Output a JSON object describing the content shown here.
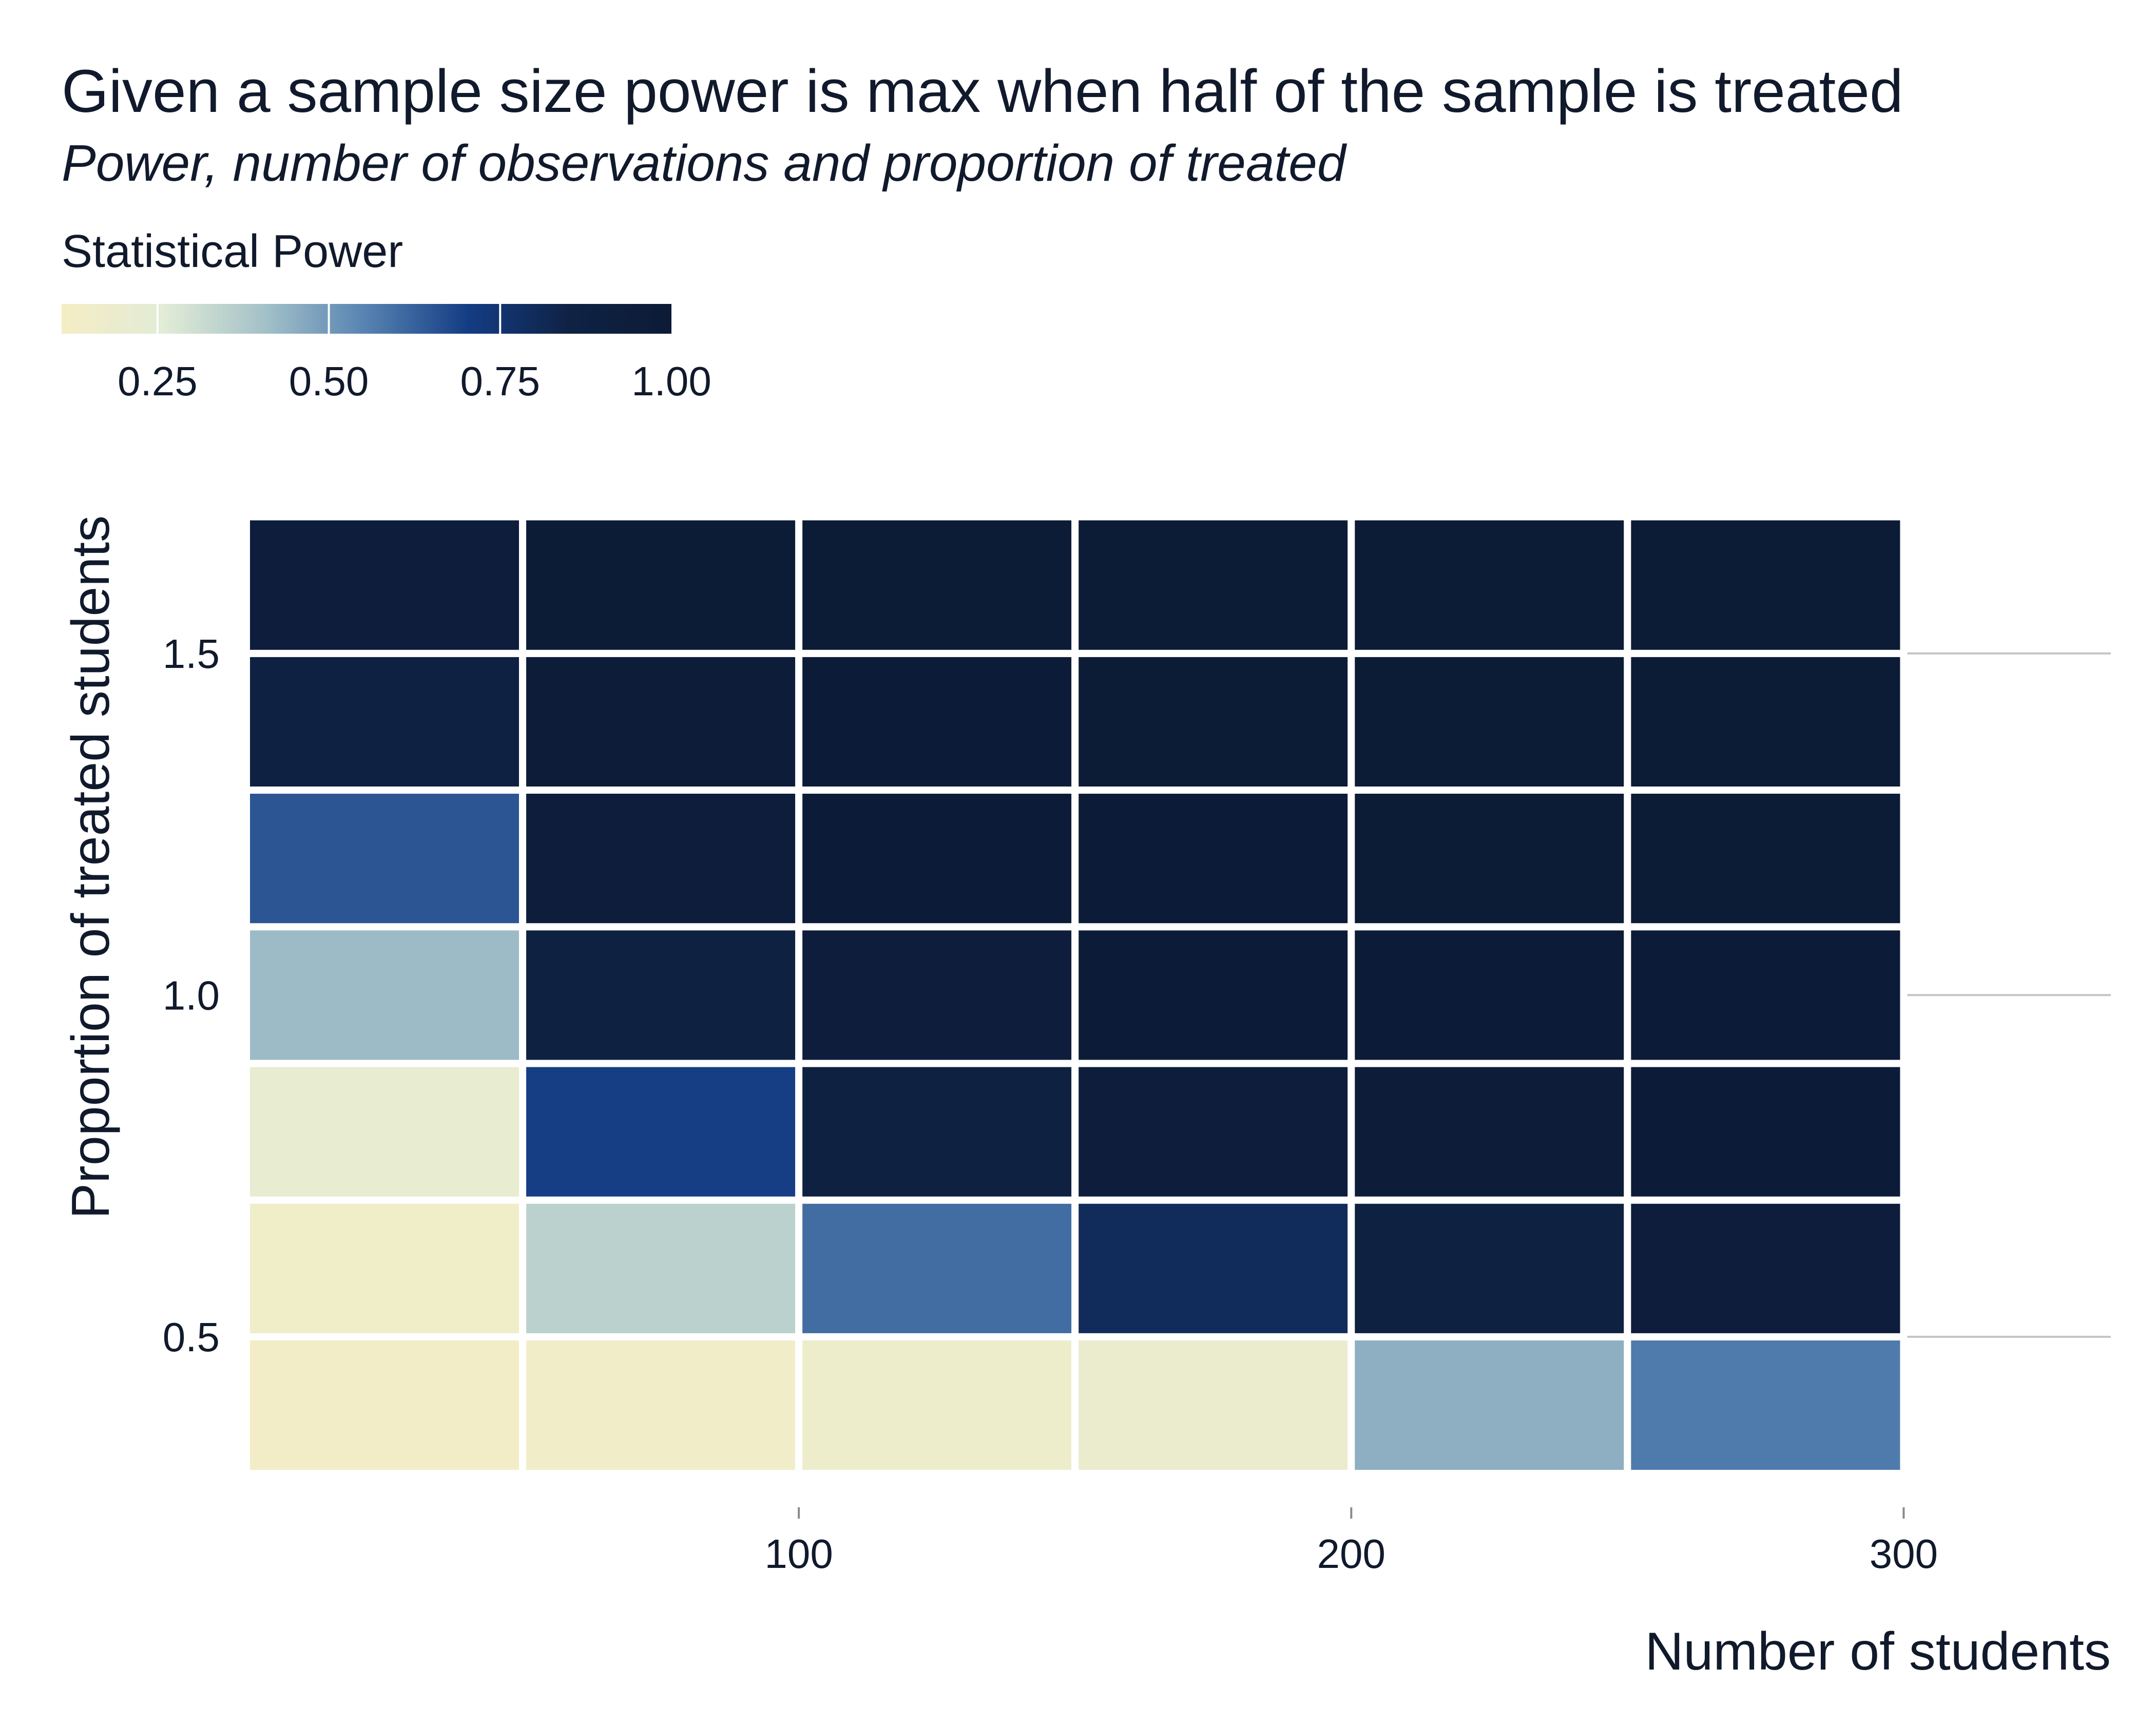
{
  "chart_data": {
    "type": "heatmap",
    "title": "Given a sample size power is max when half of the sample is treated",
    "subtitle": "Power, number of observations and proportion of treated",
    "xlabel": "Number of students",
    "ylabel": "Proportion of treated students",
    "x_ticks": [
      100,
      200,
      300
    ],
    "y_ticks": [
      0.5,
      1.0,
      1.5
    ],
    "y_tick_labels": [
      "0.5",
      "1.0",
      "1.5"
    ],
    "x_categories": [
      25,
      75,
      125,
      175,
      225,
      275
    ],
    "y_categories": [
      0.4,
      0.6,
      0.8,
      1.0,
      1.2,
      1.4,
      1.6
    ],
    "xlim": [
      0,
      337.5
    ],
    "ylim": [
      0.27,
      1.75
    ],
    "values": [
      [
        0.13,
        0.14,
        0.17,
        0.19,
        0.45,
        0.57
      ],
      [
        0.15,
        0.35,
        0.6,
        0.8,
        0.88,
        0.95
      ],
      [
        0.21,
        0.7,
        0.88,
        0.95,
        0.97,
        0.98
      ],
      [
        0.42,
        0.88,
        0.95,
        0.98,
        0.99,
        0.99
      ],
      [
        0.65,
        0.95,
        0.98,
        0.99,
        0.995,
        0.997
      ],
      [
        0.87,
        0.97,
        0.99,
        0.995,
        0.997,
        0.998
      ],
      [
        0.95,
        0.985,
        0.995,
        0.998,
        0.999,
        0.999
      ]
    ],
    "legend": {
      "title": "Statistical Power",
      "ticks": [
        0.25,
        0.5,
        0.75,
        1.0
      ],
      "tick_labels": [
        "0.25",
        "0.50",
        "0.75",
        "1.00"
      ],
      "range": [
        0.11,
        1.0
      ],
      "placement": "top-left"
    },
    "colorscale": [
      "#f5edc4",
      "#e2ecd6",
      "#a3c1c8",
      "#5682b1",
      "#143c84",
      "#0f2244",
      "#0c1b36"
    ],
    "grid": "horizontal-major"
  }
}
